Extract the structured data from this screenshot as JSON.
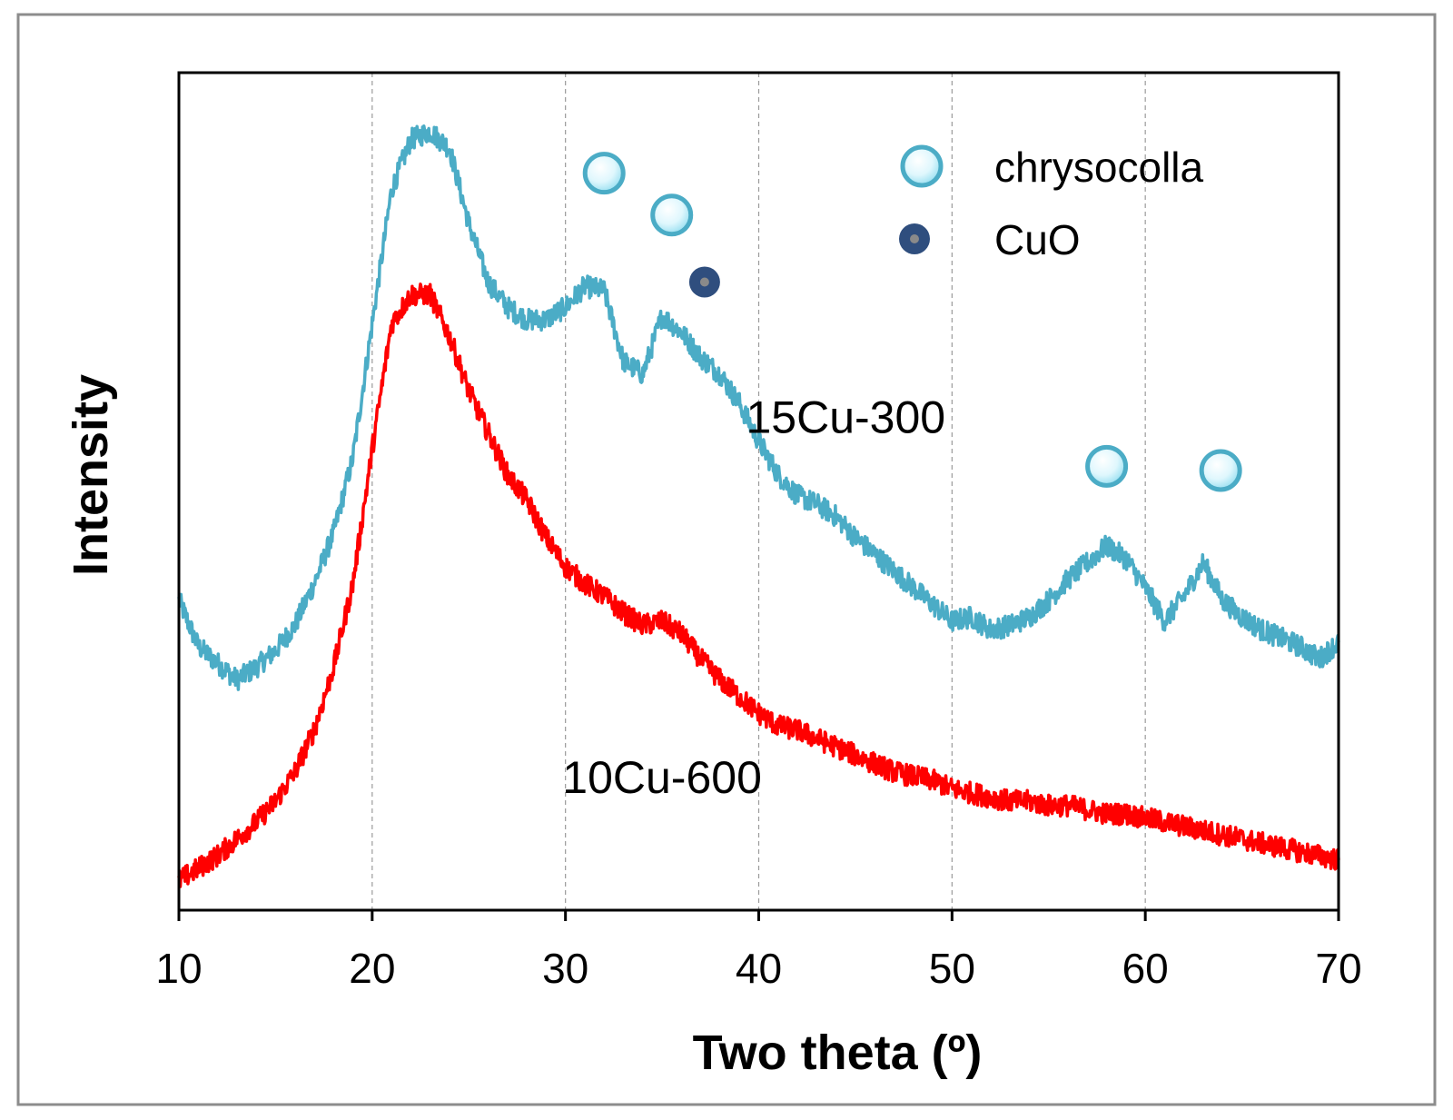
{
  "chart_data": {
    "type": "line",
    "title": "",
    "xlabel": "Two theta (º)",
    "ylabel": "Intensity",
    "xlim": [
      10,
      70
    ],
    "ylim": [
      0,
      100
    ],
    "xticks": [
      10,
      20,
      30,
      40,
      50,
      60,
      70
    ],
    "xtick_labels": [
      "10",
      "20",
      "30",
      "40",
      "50",
      "60",
      "70"
    ],
    "grid": "vertical dashed",
    "series": [
      {
        "name": "15Cu-300",
        "color": "#4BACC6",
        "x": [
          10,
          11,
          12,
          13,
          14,
          15,
          16,
          17,
          18,
          19,
          20,
          21,
          22,
          23,
          24,
          25,
          26,
          27,
          28,
          29,
          30,
          31,
          32,
          33,
          34,
          35,
          36,
          37,
          38,
          39,
          40,
          41,
          42,
          43,
          44,
          45,
          46,
          47,
          48,
          49,
          50,
          51,
          52,
          53,
          54,
          55,
          56,
          57,
          58,
          59,
          60,
          61,
          62,
          63,
          64,
          65,
          66,
          67,
          68,
          69,
          70
        ],
        "values": [
          37,
          31.5,
          29.5,
          27.5,
          29,
          31,
          34,
          39,
          45,
          54,
          70,
          86,
          92,
          93,
          91,
          82,
          75,
          72,
          70.5,
          70.5,
          72,
          74.5,
          74,
          65.5,
          64,
          71,
          69,
          66,
          64,
          60.5,
          56,
          52,
          49.5,
          48.5,
          47,
          44.5,
          42.5,
          40.5,
          38.5,
          36.5,
          34.5,
          35,
          33.5,
          34,
          35,
          37,
          39.5,
          41.5,
          43.5,
          42,
          38.5,
          34.5,
          37.5,
          41.5,
          37,
          35,
          33.5,
          32.5,
          31.5,
          30,
          32
        ]
      },
      {
        "name": "10Cu-600",
        "color": "#FF0000",
        "x": [
          10,
          11,
          12,
          13,
          14,
          15,
          16,
          17,
          18,
          19,
          20,
          21,
          22,
          23,
          24,
          25,
          26,
          27,
          28,
          29,
          30,
          31,
          32,
          33,
          34,
          35,
          36,
          37,
          38,
          39,
          40,
          41,
          42,
          43,
          44,
          45,
          46,
          47,
          48,
          49,
          50,
          51,
          52,
          53,
          54,
          55,
          56,
          57,
          58,
          59,
          60,
          61,
          62,
          63,
          64,
          65,
          66,
          67,
          68,
          69,
          70
        ],
        "values": [
          3.5,
          5,
          6.5,
          8.5,
          10.5,
          13,
          16.5,
          21.5,
          29,
          39,
          55,
          70,
          73.5,
          73.5,
          68.5,
          62,
          57,
          52,
          49,
          44.5,
          41,
          39,
          37.5,
          35.5,
          34,
          34.5,
          33,
          30,
          27.5,
          25.5,
          23.5,
          22,
          21.5,
          20.5,
          19.5,
          18.5,
          17.5,
          16.5,
          16,
          15.5,
          14.5,
          14,
          13.5,
          13,
          13,
          12.5,
          12.5,
          12,
          11.5,
          11.5,
          11,
          10.5,
          10,
          9.5,
          9,
          8.5,
          8,
          7.5,
          7,
          6.5,
          6
        ]
      }
    ],
    "series_labels": [
      {
        "text": "15Cu-300",
        "x": 44.5,
        "y": 57
      },
      {
        "text": "10Cu-600",
        "x": 35,
        "y": 14
      }
    ],
    "markers": [
      {
        "phase": "chrysocolla",
        "x": 32,
        "y": 88
      },
      {
        "phase": "chrysocolla",
        "x": 35.5,
        "y": 83
      },
      {
        "phase": "CuO",
        "x": 37.2,
        "y": 75
      },
      {
        "phase": "chrysocolla",
        "x": 58,
        "y": 53
      },
      {
        "phase": "chrysocolla",
        "x": 63.9,
        "y": 52.5
      }
    ],
    "legend": {
      "placement": "top-right",
      "entries": [
        {
          "label": "chrysocolla",
          "marker": "light-blue-circle"
        },
        {
          "label": "CuO",
          "marker": "dark-blue-dot"
        }
      ]
    },
    "marker_colors": {
      "chrysocolla_fill": "#C9F0FA",
      "chrysocolla_stroke": "#4BACC6",
      "cuo_fill": "#2F4E7E",
      "cuo_center": "#8A8A8A"
    }
  }
}
